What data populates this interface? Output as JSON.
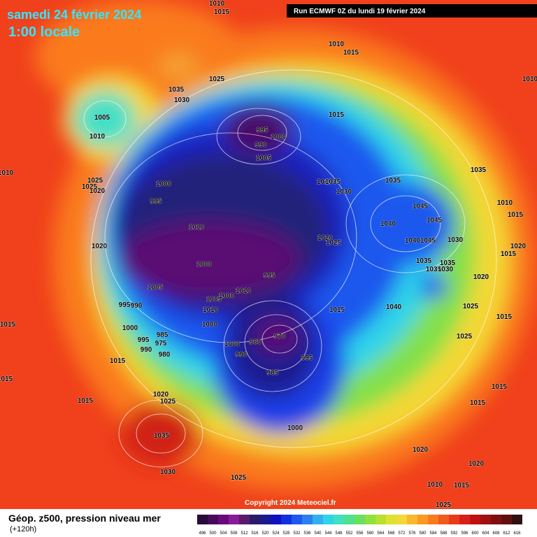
{
  "header": {
    "date": "samedi 24 février 2024",
    "time": "1:00 locale",
    "run": "Run ECMWF 0Z du lundi 19 février 2024"
  },
  "isobar_labels": [
    1010,
    1015,
    1010,
    1015,
    1025,
    1035,
    1030,
    1005,
    1010,
    995,
    1000,
    990,
    1005,
    1015,
    1010,
    1025,
    1025,
    1020,
    1000,
    995,
    1010,
    1035,
    1030,
    1035,
    1035,
    1010,
    1015,
    1045,
    1045,
    1040,
    1010,
    1020,
    1020,
    1025,
    1040,
    1045,
    1030,
    1020,
    1015,
    1000,
    1035,
    1035,
    1035,
    1030,
    995,
    1020,
    1005,
    1010,
    1005,
    1000,
    995,
    990,
    1010,
    1015,
    1040,
    1025,
    1015,
    1015,
    1000,
    1000,
    970,
    980,
    985,
    995,
    975,
    990,
    980,
    1000,
    990,
    995,
    1025,
    1015,
    985,
    1015,
    1020,
    1025,
    1015,
    1015,
    1015,
    1000,
    1035,
    1020,
    1030,
    1020,
    1025,
    1010,
    1015,
    1025,
    1010
  ],
  "copyright": "Copyright 2024 Meteociel.fr",
  "legend": {
    "title": "Géop. z500, pression niveau mer",
    "lead": "(+120h)",
    "scale": [
      496,
      500,
      504,
      508,
      512,
      516,
      520,
      524,
      528,
      532,
      536,
      540,
      544,
      548,
      552,
      556,
      560,
      564,
      568,
      572,
      576,
      580,
      584,
      588,
      592,
      596,
      600,
      604,
      608,
      612,
      616
    ]
  }
}
